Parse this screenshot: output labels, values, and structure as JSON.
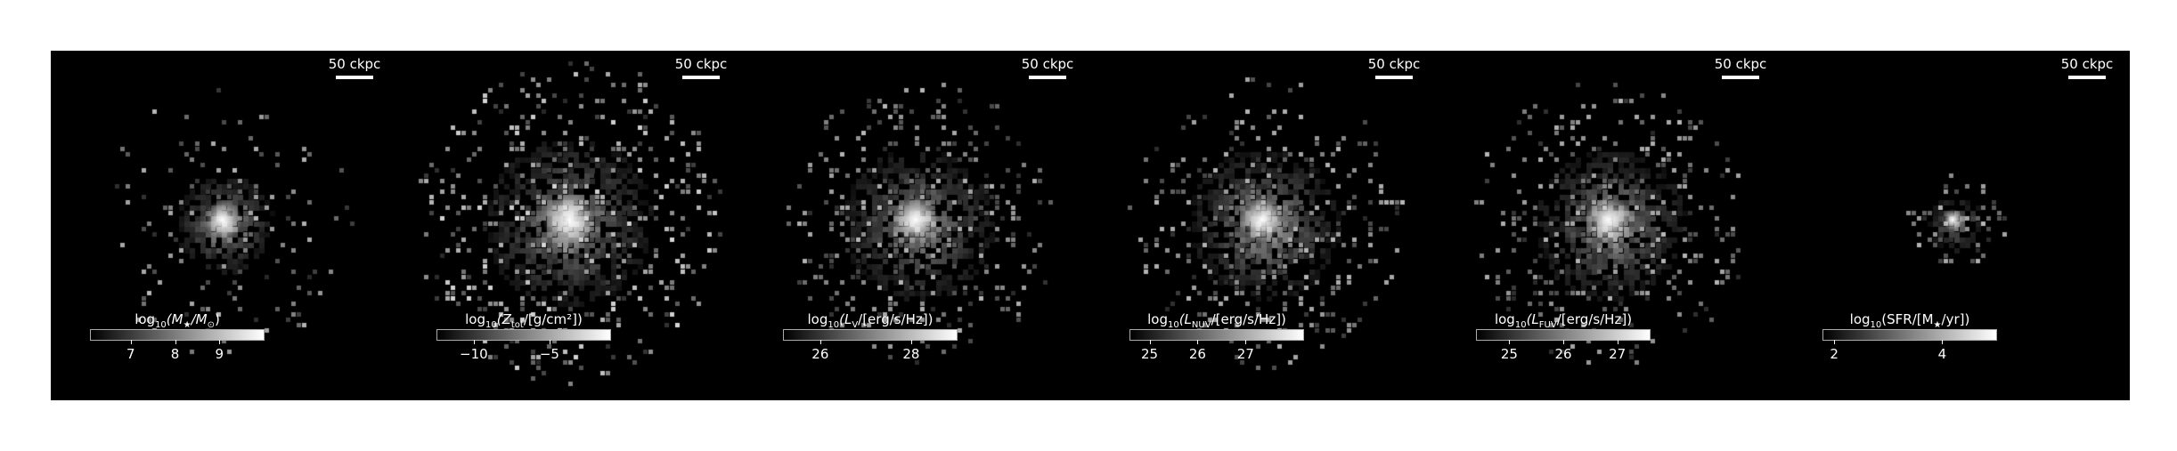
{
  "scale_bar_label": "50 ckpc",
  "panels": [
    {
      "id": "stellar-mass",
      "title_parts": [
        "log",
        "10",
        "(M",
        "★",
        "/M",
        "⊙",
        ")"
      ],
      "ticks": [
        {
          "value": 7,
          "label": "7"
        },
        {
          "value": 8,
          "label": "8"
        },
        {
          "value": 9,
          "label": "9"
        }
      ],
      "cbar_range": [
        6.1,
        10.0
      ],
      "core_brightness": 1.0,
      "spread": "compact"
    },
    {
      "id": "metal-surface-density",
      "title_parts": [
        "log",
        "10",
        "(Z",
        "tot",
        "/[g/cm²])"
      ],
      "ticks": [
        {
          "value": -10,
          "label": "−10"
        },
        {
          "value": -5,
          "label": "−5"
        }
      ],
      "cbar_range": [
        -12.4,
        -1.0
      ],
      "core_brightness": 1.0,
      "spread": "wide"
    },
    {
      "id": "v-band-luminosity",
      "title_parts": [
        "log",
        "10",
        "(L",
        "V",
        "/[erg/s/Hz])"
      ],
      "ticks": [
        {
          "value": 26,
          "label": "26"
        },
        {
          "value": 28,
          "label": "28"
        }
      ],
      "cbar_range": [
        25.2,
        29.0
      ],
      "core_brightness": 1.0,
      "spread": "medium"
    },
    {
      "id": "nuv-luminosity",
      "title_parts": [
        "log",
        "10",
        "(L",
        "NUV",
        "/[erg/s/Hz])"
      ],
      "ticks": [
        {
          "value": 25,
          "label": "25"
        },
        {
          "value": 26,
          "label": "26"
        },
        {
          "value": 27,
          "label": "27"
        }
      ],
      "cbar_range": [
        24.6,
        28.2
      ],
      "core_brightness": 1.0,
      "spread": "medium"
    },
    {
      "id": "fuv-luminosity",
      "title_parts": [
        "log",
        "10",
        "(L",
        "FUV",
        "/[erg/s/Hz])"
      ],
      "ticks": [
        {
          "value": 25,
          "label": "25"
        },
        {
          "value": 26,
          "label": "26"
        },
        {
          "value": 27,
          "label": "27"
        }
      ],
      "cbar_range": [
        24.4,
        27.6
      ],
      "core_brightness": 1.0,
      "spread": "medium"
    },
    {
      "id": "star-formation-rate",
      "title_parts": [
        "log",
        "10",
        "(SFR/[M",
        "★",
        "/yr])"
      ],
      "ticks": [
        {
          "value": 2,
          "label": "2"
        },
        {
          "value": 4,
          "label": "4"
        }
      ],
      "cbar_range": [
        1.8,
        5.0
      ],
      "core_brightness": 1.0,
      "spread": "tiny"
    }
  ],
  "colors": {
    "background": "#000000",
    "foreground": "#ffffff",
    "figure_margin": "#ffffff"
  }
}
